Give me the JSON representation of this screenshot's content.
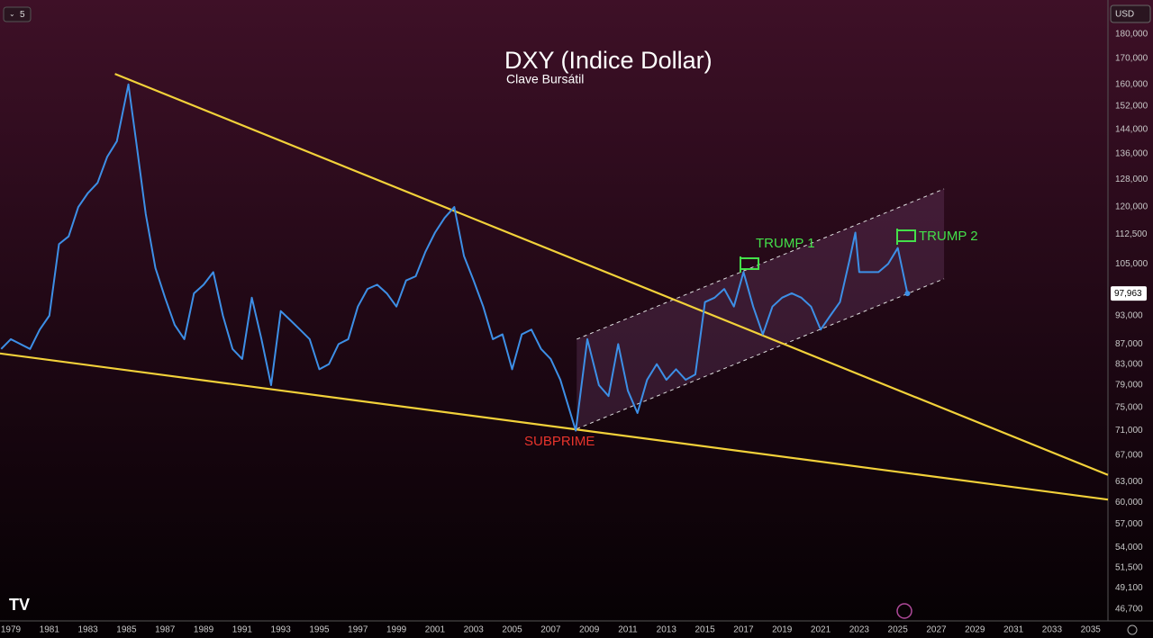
{
  "chart_data": {
    "type": "line",
    "title": "DXY (Indice Dollar)",
    "subtitle": "Clave Bursátil",
    "interval": "5",
    "currency": "USD",
    "log_scale": true,
    "xlim": [
      1978.44,
      2035.9
    ],
    "ylim": [
      180,
      46.7
    ],
    "xticks": [
      1979,
      1981,
      1983,
      1985,
      1987,
      1989,
      1991,
      1993,
      1995,
      1997,
      1999,
      2001,
      2003,
      2005,
      2007,
      2009,
      2011,
      2013,
      2015,
      2017,
      2019,
      2021,
      2023,
      2025,
      2027,
      2029,
      2031,
      2033,
      2035
    ],
    "yticks": [
      {
        "value": 180,
        "label": "180,000"
      },
      {
        "value": 170,
        "label": "170,000"
      },
      {
        "value": 160,
        "label": "160,000"
      },
      {
        "value": 152,
        "label": "152,000"
      },
      {
        "value": 144,
        "label": "144,000"
      },
      {
        "value": 136,
        "label": "136,000"
      },
      {
        "value": 128,
        "label": "128,000"
      },
      {
        "value": 120,
        "label": "120,000"
      },
      {
        "value": 112.5,
        "label": "112,500"
      },
      {
        "value": 105,
        "label": "105,000"
      },
      {
        "value": 93,
        "label": "93,000"
      },
      {
        "value": 87,
        "label": "87,000"
      },
      {
        "value": 83,
        "label": "83,000"
      },
      {
        "value": 79,
        "label": "79,000"
      },
      {
        "value": 75,
        "label": "75,000"
      },
      {
        "value": 71,
        "label": "71,000"
      },
      {
        "value": 67,
        "label": "67,000"
      },
      {
        "value": 63,
        "label": "63,000"
      },
      {
        "value": 60,
        "label": "60,000"
      },
      {
        "value": 57,
        "label": "57,000"
      },
      {
        "value": 54,
        "label": "54,000"
      },
      {
        "value": 51.5,
        "label": "51,500"
      },
      {
        "value": 49.1,
        "label": "49,100"
      },
      {
        "value": 46.7,
        "label": "46,700"
      }
    ],
    "series": [
      {
        "name": "DXY",
        "color": "#3d8fe6",
        "x": [
          1978.5,
          1979,
          1980,
          1980.5,
          1981,
          1981.5,
          1982,
          1982.5,
          1983,
          1983.5,
          1984,
          1984.5,
          1985.1,
          1985.5,
          1986,
          1986.5,
          1987,
          1987.5,
          1988,
          1988.5,
          1989,
          1989.5,
          1990,
          1990.5,
          1991,
          1991.5,
          1992,
          1992.5,
          1993,
          1993.5,
          1994,
          1994.5,
          1995,
          1995.5,
          1996,
          1996.5,
          1997,
          1997.5,
          1998,
          1998.5,
          1999,
          1999.5,
          2000,
          2000.5,
          2001,
          2001.5,
          2002,
          2002.5,
          2003,
          2003.5,
          2004,
          2004.5,
          2005,
          2005.5,
          2006,
          2006.5,
          2007,
          2007.5,
          2008.3,
          2008.9,
          2009.5,
          2010,
          2010.5,
          2011,
          2011.5,
          2012,
          2012.5,
          2013,
          2013.5,
          2014,
          2014.5,
          2015,
          2015.5,
          2016,
          2016.5,
          2017,
          2017.5,
          2018,
          2018.5,
          2019,
          2019.5,
          2020,
          2020.5,
          2021,
          2021.5,
          2022,
          2022.5,
          2022.8,
          2023,
          2023.5,
          2024,
          2024.5,
          2025,
          2025.5
        ],
        "values": [
          86,
          88,
          86,
          90,
          93,
          110,
          112,
          120,
          124,
          127,
          135,
          140,
          160,
          140,
          118,
          104,
          97,
          91,
          88,
          98,
          100,
          103,
          93,
          86,
          84,
          97,
          88,
          79,
          94,
          92,
          90,
          88,
          82,
          83,
          87,
          88,
          95,
          99,
          100,
          98,
          95,
          101,
          102,
          108,
          113,
          117,
          120,
          107,
          101,
          95,
          88,
          89,
          82,
          89,
          90,
          86,
          84,
          80,
          71,
          88,
          79,
          77,
          87,
          78,
          74,
          80,
          83,
          80,
          82,
          80,
          81,
          96,
          97,
          99,
          95,
          103,
          95,
          89,
          95,
          97,
          98,
          97,
          95,
          90,
          93,
          96,
          106,
          113,
          103,
          103,
          103,
          105,
          109,
          97.963
        ]
      }
    ],
    "last_price": {
      "value": 97.963,
      "label": "97,963"
    },
    "trendlines": [
      {
        "x": [
          1984.4,
          2035.9
        ],
        "y": [
          164,
          64
        ],
        "color": "#f2d13a"
      },
      {
        "x": [
          1978.44,
          2035.9
        ],
        "y": [
          85.1,
          60.4
        ],
        "color": "#f2d13a"
      }
    ],
    "channel": {
      "x": [
        2008.35,
        2027.4
      ],
      "upper": [
        88,
        125.2
      ],
      "lower": [
        71.3,
        101.4
      ]
    },
    "annotations": [
      {
        "text": "SUBPRIME",
        "color": "#e8342c"
      },
      {
        "text": "TRUMP 1",
        "color": "#44e04a"
      },
      {
        "text": "TRUMP 2",
        "color": "#44e04a"
      }
    ]
  }
}
